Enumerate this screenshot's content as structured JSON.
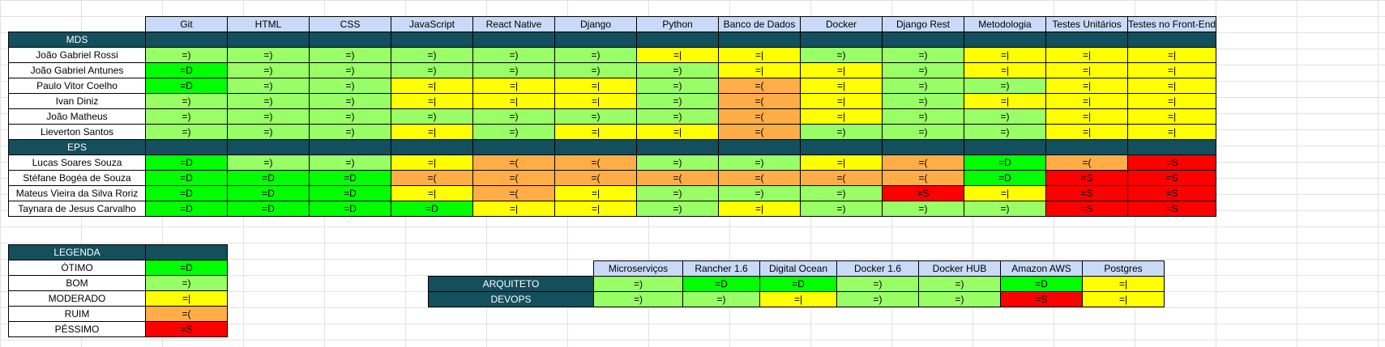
{
  "legend_colors": {
    "=D": "#00ff00",
    "=)": "#99ff66",
    "=|": "#ffff00",
    "=(": "#ffad47",
    "=S": "#ff0000",
    "section_bg": "#134f5c",
    "header_bg": "#c9daf8"
  },
  "skills_header": [
    "Git",
    "HTML",
    "CSS",
    "JavaScript",
    "React Native",
    "Django",
    "Python",
    "Banco de Dados",
    "Docker",
    "Django Rest",
    "Metodologia",
    "Testes Unitários",
    "Testes no Front-End"
  ],
  "sections": [
    {
      "title": "MDS",
      "rows": [
        {
          "name": "João Gabriel Rossi",
          "values": [
            "=)",
            "=)",
            "=)",
            "=)",
            "=)",
            "=)",
            "=|",
            "=|",
            "=)",
            "=)",
            "=|",
            "=|",
            "=|"
          ]
        },
        {
          "name": "João Gabriel Antunes",
          "values": [
            "=D",
            "=)",
            "=)",
            "=)",
            "=)",
            "=)",
            "=)",
            "=|",
            "=|",
            "=)",
            "=|",
            "=|",
            "=|"
          ]
        },
        {
          "name": "Paulo Vitor Coelho",
          "values": [
            "=D",
            "=)",
            "=)",
            "=|",
            "=|",
            "=|",
            "=)",
            "=(",
            "=|",
            "=)",
            "=)",
            "=|",
            "=|"
          ]
        },
        {
          "name": "Ivan Diniz",
          "values": [
            "=)",
            "=)",
            "=)",
            "=|",
            "=|",
            "=|",
            "=)",
            "=(",
            "=|",
            "=)",
            "=|",
            "=|",
            "=|"
          ]
        },
        {
          "name": "João Matheus",
          "values": [
            "=)",
            "=)",
            "=)",
            "=)",
            "=)",
            "=)",
            "=)",
            "=(",
            "=|",
            "=)",
            "=)",
            "=|",
            "=|"
          ]
        },
        {
          "name": "Lieverton Santos",
          "values": [
            "=)",
            "=)",
            "=)",
            "=|",
            "=)",
            "=|",
            "=|",
            "=(",
            "=)",
            "=)",
            "=)",
            "=|",
            "=|"
          ]
        }
      ]
    },
    {
      "title": "EPS",
      "rows": [
        {
          "name": "Lucas Soares Souza",
          "values": [
            "=D",
            "=)",
            "=)",
            "=|",
            "=(",
            "=(",
            "=)",
            "=)",
            "=|",
            "=(",
            "=D",
            "=(",
            "=S"
          ]
        },
        {
          "name": "Stéfane Bogéa de Souza",
          "values": [
            "=D",
            "=D",
            "=D",
            "=(",
            "=(",
            "=(",
            "=(",
            "=(",
            "=(",
            "=(",
            "=D",
            "=S",
            "=S"
          ]
        },
        {
          "name": "Mateus Vieira da Silva Roriz",
          "values": [
            "=D",
            "=D",
            "=D",
            "=|",
            "=(",
            "=|",
            "=)",
            "=)",
            "=)",
            "=S",
            "=|",
            "=S",
            "=S"
          ]
        },
        {
          "name": "Taynara de Jesus Carvalho",
          "values": [
            "=D",
            "=D",
            "=D",
            "=D",
            "=|",
            "=|",
            "=)",
            "=|",
            "=)",
            "=)",
            "=)",
            "=S",
            "=S"
          ]
        }
      ]
    }
  ],
  "legend": {
    "title": "LEGENDA",
    "items": [
      {
        "label": "ÓTIMO",
        "value": "=D"
      },
      {
        "label": "BOM",
        "value": "=)"
      },
      {
        "label": "MODERADO",
        "value": "=|"
      },
      {
        "label": "RUIM",
        "value": "=("
      },
      {
        "label": "PÉSSIMO",
        "value": "=S"
      }
    ]
  },
  "infra": {
    "header": [
      "Microserviços",
      "Rancher 1.6",
      "Digital Ocean",
      "Docker 1.6",
      "Docker HUB",
      "Amazon AWS",
      "Postgres"
    ],
    "rows": [
      {
        "name": "ARQUITETO",
        "values": [
          "=)",
          "=D",
          "=D",
          "=)",
          "=)",
          "=D",
          "=|"
        ]
      },
      {
        "name": "DEVOPS",
        "values": [
          "=)",
          "=)",
          "=|",
          "=)",
          "=)",
          "=S",
          "=|"
        ]
      }
    ]
  }
}
